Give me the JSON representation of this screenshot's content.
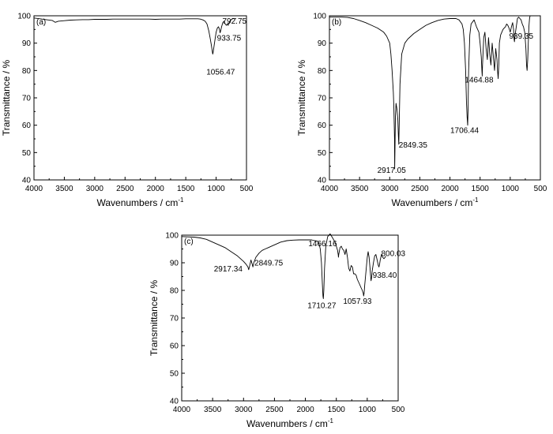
{
  "chart_data": [
    {
      "type": "line",
      "panel_label": "(a)",
      "xlabel": "Wavenumbers / cm",
      "xlabel_sup": "-1",
      "ylabel": "Transmittance / %",
      "xlim": [
        4000,
        500
      ],
      "ylim": [
        40,
        100
      ],
      "x_ticks": [
        4000,
        3500,
        3000,
        2500,
        2000,
        1500,
        1000,
        500
      ],
      "y_ticks": [
        40,
        50,
        60,
        70,
        80,
        90,
        100
      ],
      "grid": false,
      "series": [
        {
          "x": [
            4000,
            3900,
            3800,
            3700,
            3650,
            3600,
            3500,
            3400,
            3300,
            3200,
            3100,
            3000,
            2900,
            2800,
            2700,
            2600,
            2500,
            2400,
            2300,
            2200,
            2100,
            2000,
            1900,
            1800,
            1700,
            1600,
            1500,
            1400,
            1300,
            1260,
            1220,
            1180,
            1150,
            1120,
            1100,
            1080,
            1070,
            1060,
            1056,
            1050,
            1040,
            1020,
            1000,
            980,
            960,
            945,
            935,
            925,
            910,
            890,
            870,
            850,
            830,
            815,
            800,
            793,
            785,
            770,
            750,
            730,
            710,
            690,
            670
          ],
          "y": [
            99.2,
            98.9,
            98.6,
            98.3,
            97.6,
            98.0,
            98.2,
            98.4,
            98.5,
            98.6,
            98.6,
            98.7,
            98.7,
            98.7,
            98.8,
            98.8,
            98.8,
            98.8,
            98.8,
            98.8,
            98.8,
            98.7,
            98.8,
            98.8,
            98.8,
            98.8,
            98.9,
            98.9,
            98.9,
            98.8,
            98.5,
            98.0,
            97.0,
            94.5,
            92.0,
            89.5,
            88.0,
            86.5,
            86.0,
            86.5,
            88.0,
            91.0,
            94.0,
            95.5,
            96.0,
            95.0,
            93.8,
            94.5,
            96.0,
            97.5,
            98.0,
            97.0,
            96.5,
            97.0,
            96.5,
            97.2,
            97.5,
            98.0,
            98.6,
            99.0,
            99.0,
            98.9,
            99.0
          ]
        }
      ],
      "annotations": [
        {
          "text": "1056.47",
          "x": 1056.47,
          "y": 86.0
        },
        {
          "text": "933.75",
          "x": 933.75,
          "y": 93.8
        },
        {
          "text": "792.75",
          "x": 792.75,
          "y": 96.5
        }
      ]
    },
    {
      "type": "line",
      "panel_label": "(b)",
      "xlabel": "Wavenumbers / cm",
      "xlabel_sup": "-1",
      "ylabel": "Transmittance / %",
      "xlim": [
        4000,
        500
      ],
      "ylim": [
        40,
        100
      ],
      "x_ticks": [
        4000,
        3500,
        3000,
        2500,
        2000,
        1500,
        1000,
        500
      ],
      "y_ticks": [
        40,
        50,
        60,
        70,
        80,
        90,
        100
      ],
      "grid": false,
      "series": [
        {
          "x": [
            4000,
            3800,
            3700,
            3600,
            3500,
            3400,
            3300,
            3200,
            3100,
            3050,
            3000,
            2980,
            2960,
            2940,
            2930,
            2920,
            2917,
            2912,
            2905,
            2895,
            2880,
            2865,
            2855,
            2849,
            2842,
            2830,
            2800,
            2750,
            2700,
            2650,
            2600,
            2500,
            2400,
            2300,
            2200,
            2100,
            2000,
            1950,
            1900,
            1850,
            1800,
            1780,
            1760,
            1740,
            1725,
            1715,
            1706,
            1700,
            1690,
            1670,
            1650,
            1600,
            1560,
            1520,
            1500,
            1480,
            1470,
            1465,
            1460,
            1440,
            1420,
            1400,
            1380,
            1360,
            1340,
            1320,
            1300,
            1280,
            1260,
            1240,
            1220,
            1210,
            1200,
            1190,
            1180,
            1160,
            1140,
            1120,
            1100,
            1080,
            1060,
            1040,
            1020,
            1000,
            980,
            960,
            945,
            939,
            930,
            920,
            900,
            880,
            860,
            840,
            820,
            800,
            780,
            760,
            740,
            730,
            720,
            710,
            700,
            690,
            680,
            670
          ],
          "y": [
            99.5,
            99.5,
            99.4,
            99.0,
            98.3,
            97.5,
            96.5,
            95.5,
            94.0,
            92.5,
            90.0,
            86.0,
            80.0,
            72.0,
            66.0,
            55.0,
            44.0,
            52.0,
            63.0,
            68.0,
            66.0,
            62.0,
            56.0,
            53.0,
            60.0,
            75.0,
            86.0,
            90.0,
            91.5,
            92.5,
            93.5,
            95.0,
            96.5,
            97.5,
            98.3,
            98.8,
            99.0,
            99.0,
            99.0,
            98.5,
            97.0,
            95.0,
            90.0,
            80.0,
            68.0,
            63.0,
            60.0,
            66.0,
            80.0,
            93.0,
            97.0,
            98.5,
            96.0,
            94.0,
            90.0,
            85.0,
            80.0,
            78.0,
            82.0,
            92.0,
            94.0,
            88.0,
            84.0,
            92.0,
            86.0,
            82.0,
            90.0,
            85.0,
            80.0,
            88.0,
            84.0,
            80.0,
            77.0,
            82.0,
            90.0,
            93.0,
            94.0,
            95.0,
            95.5,
            96.0,
            97.0,
            96.5,
            95.5,
            94.0,
            96.0,
            97.5,
            95.0,
            92.0,
            90.5,
            93.0,
            96.0,
            99.0,
            99.5,
            99.0,
            98.5,
            97.0,
            96.0,
            94.0,
            88.0,
            82.0,
            80.0,
            84.0,
            90.0,
            96.0,
            99.0,
            100.0
          ]
        }
      ],
      "annotations": [
        {
          "text": "2917.05",
          "x": 2917.05,
          "y": 44.0
        },
        {
          "text": "2849.35",
          "x": 2849.35,
          "y": 53.0
        },
        {
          "text": "1706.44",
          "x": 1706.44,
          "y": 60.0
        },
        {
          "text": "1464.88",
          "x": 1464.88,
          "y": 78.0
        },
        {
          "text": "939.35",
          "x": 939.35,
          "y": 90.5
        }
      ]
    },
    {
      "type": "line",
      "panel_label": "(c)",
      "xlabel": "Wavenumbers / cm",
      "xlabel_sup": "-1",
      "ylabel": "Transmittance / %",
      "xlim": [
        4000,
        500
      ],
      "ylim": [
        40,
        100
      ],
      "x_ticks": [
        4000,
        3500,
        3000,
        2500,
        2000,
        1500,
        1000,
        500
      ],
      "y_ticks": [
        40,
        50,
        60,
        70,
        80,
        90,
        100
      ],
      "grid": false,
      "series": [
        {
          "x": [
            4000,
            3800,
            3700,
            3600,
            3500,
            3400,
            3300,
            3200,
            3100,
            3050,
            3000,
            2960,
            2930,
            2917,
            2900,
            2880,
            2860,
            2849,
            2835,
            2800,
            2750,
            2700,
            2650,
            2600,
            2500,
            2400,
            2300,
            2200,
            2100,
            2000,
            1950,
            1900,
            1850,
            1800,
            1780,
            1760,
            1740,
            1725,
            1716,
            1710,
            1702,
            1690,
            1670,
            1640,
            1600,
            1560,
            1520,
            1500,
            1480,
            1470,
            1466,
            1460,
            1440,
            1420,
            1400,
            1380,
            1360,
            1340,
            1320,
            1300,
            1280,
            1260,
            1240,
            1220,
            1200,
            1180,
            1160,
            1140,
            1120,
            1100,
            1080,
            1065,
            1058,
            1050,
            1040,
            1020,
            1000,
            985,
            970,
            955,
            945,
            938,
            930,
            920,
            900,
            880,
            860,
            840,
            820,
            810,
            800,
            790,
            770,
            750,
            730,
            710,
            700
          ],
          "y": [
            99.5,
            99.3,
            99.0,
            98.5,
            97.5,
            96.5,
            95.5,
            94.0,
            92.5,
            91.5,
            90.5,
            89.5,
            88.5,
            87.5,
            89.0,
            91.0,
            89.5,
            88.5,
            90.0,
            92.0,
            93.5,
            94.5,
            95.0,
            95.5,
            96.5,
            97.5,
            98.0,
            98.2,
            98.3,
            98.3,
            98.3,
            98.3,
            98.0,
            97.8,
            97.0,
            95.0,
            90.0,
            82.0,
            78.0,
            77.0,
            80.0,
            88.0,
            96.0,
            99.5,
            100.5,
            99.0,
            97.5,
            96.0,
            94.5,
            93.0,
            92.0,
            93.0,
            95.5,
            96.0,
            95.0,
            94.5,
            93.0,
            95.0,
            92.0,
            88.0,
            87.0,
            89.0,
            88.5,
            86.0,
            86.0,
            85.5,
            84.0,
            83.0,
            82.0,
            81.0,
            80.0,
            79.0,
            78.0,
            79.0,
            82.0,
            87.0,
            92.0,
            94.0,
            92.0,
            88.0,
            85.0,
            83.5,
            84.5,
            87.0,
            90.0,
            92.5,
            93.0,
            91.0,
            89.0,
            88.5,
            89.5,
            91.0,
            93.0,
            92.0,
            91.5,
            92.0,
            92.5
          ]
        }
      ],
      "annotations": [
        {
          "text": "2917.34",
          "x": 2917.34,
          "y": 87.5
        },
        {
          "text": "2849.75",
          "x": 2849.75,
          "y": 88.5
        },
        {
          "text": "1710.27",
          "x": 1710.27,
          "y": 77.0
        },
        {
          "text": "1466.16",
          "x": 1466.16,
          "y": 92.0
        },
        {
          "text": "1057.93",
          "x": 1057.93,
          "y": 78.0
        },
        {
          "text": "938.40",
          "x": 938.4,
          "y": 83.5
        },
        {
          "text": "800.03",
          "x": 800.03,
          "y": 88.5
        }
      ]
    }
  ]
}
